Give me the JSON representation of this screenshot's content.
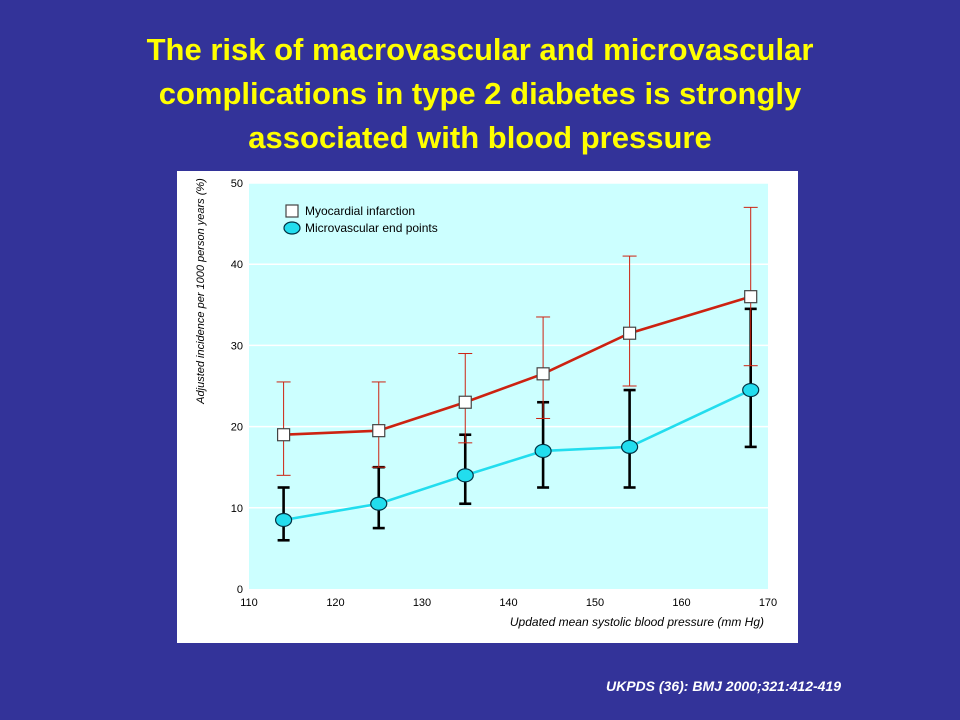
{
  "slide": {
    "title_lines": [
      "The risk of macrovascular and microvascular",
      "complications in type 2 diabetes is strongly",
      "associated with blood pressure"
    ],
    "citation": "UKPDS (36): BMJ 2000;321:412-419"
  },
  "colors": {
    "background": "#333399",
    "title": "#ffff00",
    "plot_area": "#ccffff",
    "mi_series": "#cc2211",
    "micro_series": "#22ddee",
    "micro_error_bars": "#000000"
  },
  "chart_data": {
    "type": "line",
    "title": "",
    "xlabel": "Updated mean systolic blood pressure (mm Hg)",
    "ylabel": "Adjusted incidence per 1000 person years (%)",
    "xlim": [
      110,
      170
    ],
    "ylim": [
      0,
      50
    ],
    "x_ticks": [
      110,
      120,
      130,
      140,
      150,
      160,
      170
    ],
    "y_ticks": [
      0,
      10,
      20,
      30,
      40,
      50
    ],
    "grid": "horizontal",
    "legend_position": "top-left",
    "series": [
      {
        "name": "Myocardial infarction",
        "marker": "square",
        "x": [
          114,
          125,
          135,
          144,
          154,
          168
        ],
        "y": [
          19,
          19.5,
          23,
          26.5,
          31.5,
          36
        ],
        "err_low": [
          14,
          15,
          18,
          21,
          25,
          27.5
        ],
        "err_high": [
          25.5,
          25.5,
          29,
          33.5,
          41,
          47
        ]
      },
      {
        "name": "Microvascular end points",
        "marker": "circle",
        "x": [
          114,
          125,
          135,
          144,
          154,
          168
        ],
        "y": [
          8.5,
          10.5,
          14,
          17,
          17.5,
          24.5
        ],
        "err_low": [
          6,
          7.5,
          10.5,
          12.5,
          12.5,
          17.5
        ],
        "err_high": [
          12.5,
          15,
          19,
          23,
          24.5,
          34.5
        ]
      }
    ]
  }
}
